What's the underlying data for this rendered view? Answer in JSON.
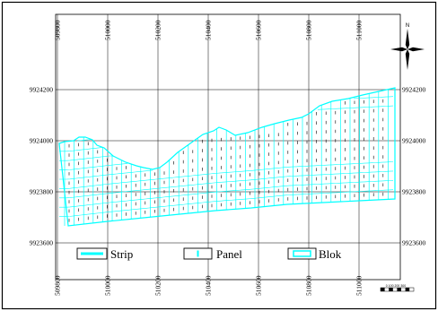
{
  "map": {
    "easting_ticks": [
      "509800",
      "510000",
      "510200",
      "510400",
      "510600",
      "510800",
      "511000"
    ],
    "northing_ticks": [
      "9924200",
      "9924000",
      "9923800",
      "9923600"
    ],
    "north_arrow_letter": "N",
    "scale_bar_text": "0 100 200 300"
  },
  "legend": {
    "items": [
      {
        "label": "Strip",
        "symbol": "strip"
      },
      {
        "label": "Panel",
        "symbol": "panel"
      },
      {
        "label": "Blok",
        "symbol": "blok"
      }
    ]
  },
  "colors": {
    "grid_lines": "#00ffff",
    "coordinate_grid": "#000000",
    "frame": "#000000",
    "background": "#ffffff"
  }
}
